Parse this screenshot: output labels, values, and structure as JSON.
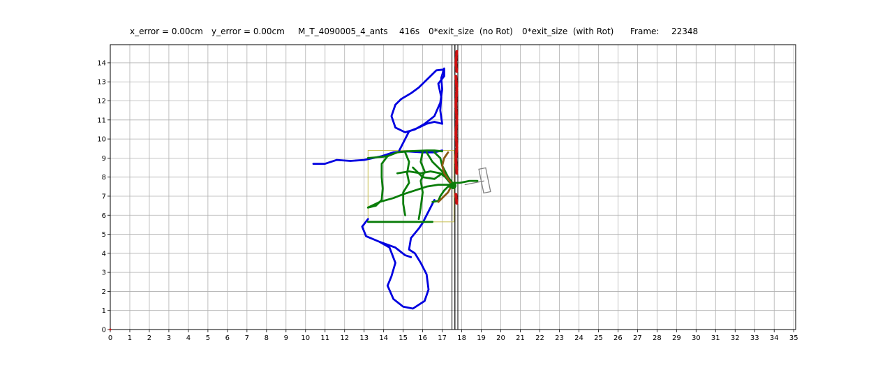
{
  "header": {
    "x_error": "x_error = 0.00cm",
    "y_error": "y_error = 0.00cm",
    "experiment": "M_T_4090005_4_ants",
    "duration": "416s",
    "exit_no_rot": "0*exit_size  (no Rot)",
    "exit_with_rot": "0*exit_size  (with Rot)",
    "frame_label": "Frame:",
    "frame_value": "22348"
  },
  "chart_data": {
    "type": "line",
    "xlim": [
      0,
      35.1
    ],
    "ylim": [
      0,
      14.95
    ],
    "xticks": [
      0,
      1,
      2,
      3,
      4,
      5,
      6,
      7,
      8,
      9,
      10,
      11,
      12,
      13,
      14,
      15,
      16,
      17,
      18,
      19,
      20,
      21,
      22,
      23,
      24,
      25,
      26,
      27,
      28,
      29,
      30,
      31,
      32,
      33,
      34,
      35
    ],
    "yticks": [
      0,
      1,
      2,
      3,
      4,
      5,
      6,
      7,
      8,
      9,
      10,
      11,
      12,
      13,
      14
    ],
    "grid": true,
    "colors": {
      "blue": "#0000e0",
      "green": "#0a7d0a",
      "red": "#cc1111",
      "brown": "#8a5a14",
      "yellow": "#c8c050",
      "gray": "#808080"
    },
    "series": [
      {
        "color": "blue",
        "points": [
          [
            10.4,
            8.7
          ],
          [
            11,
            8.7
          ],
          [
            11.6,
            8.9
          ],
          [
            12.3,
            8.85
          ],
          [
            13,
            8.9
          ],
          [
            13.9,
            9.1
          ],
          [
            14.5,
            9.3
          ],
          [
            15.2,
            9.35
          ],
          [
            16,
            9.3
          ],
          [
            16.6,
            9.3
          ],
          [
            17,
            9.4
          ]
        ]
      },
      {
        "color": "blue",
        "points": [
          [
            14.8,
            9.4
          ],
          [
            15.1,
            10
          ],
          [
            15.3,
            10.4
          ],
          [
            15.8,
            10.6
          ],
          [
            16.2,
            10.8
          ],
          [
            16.6,
            10.9
          ],
          [
            17,
            10.8
          ],
          [
            16.9,
            11.5
          ],
          [
            16.95,
            12.2
          ],
          [
            16.8,
            12.9
          ],
          [
            17.1,
            13.3
          ],
          [
            17.1,
            13.65
          ],
          [
            16.7,
            13.6
          ],
          [
            16.3,
            13.2
          ],
          [
            15.8,
            12.7
          ],
          [
            15.4,
            12.4
          ],
          [
            14.9,
            12.1
          ],
          [
            14.6,
            11.8
          ],
          [
            14.4,
            11.2
          ],
          [
            14.6,
            10.6
          ],
          [
            15.1,
            10.35
          ],
          [
            15.6,
            10.5
          ],
          [
            16.1,
            10.8
          ],
          [
            16.6,
            11.2
          ],
          [
            16.9,
            11.9
          ],
          [
            17,
            12.6
          ],
          [
            16.95,
            13.2
          ],
          [
            17.1,
            13.7
          ]
        ]
      },
      {
        "color": "blue",
        "points": [
          [
            13.2,
            5.8
          ],
          [
            12.9,
            5.4
          ],
          [
            13.1,
            4.9
          ],
          [
            13.8,
            4.6
          ],
          [
            14.3,
            4.3
          ],
          [
            14.6,
            3.5
          ],
          [
            14.4,
            2.8
          ],
          [
            14.2,
            2.3
          ],
          [
            14.5,
            1.6
          ],
          [
            15,
            1.2
          ],
          [
            15.5,
            1.1
          ],
          [
            16.1,
            1.5
          ],
          [
            16.3,
            2.1
          ],
          [
            16.2,
            2.9
          ],
          [
            15.9,
            3.5
          ],
          [
            15.6,
            4.0
          ],
          [
            15.3,
            4.2
          ],
          [
            15.4,
            4.8
          ],
          [
            15.8,
            5.3
          ],
          [
            16,
            5.6
          ],
          [
            16.3,
            6.2
          ],
          [
            16.6,
            6.8
          ]
        ]
      },
      {
        "color": "blue",
        "points": [
          [
            13.8,
            4.6
          ],
          [
            14.6,
            4.3
          ],
          [
            15.1,
            3.9
          ],
          [
            15.4,
            3.8
          ]
        ]
      },
      {
        "color": "green",
        "points": [
          [
            13.2,
            9.0
          ],
          [
            13.8,
            9.05
          ],
          [
            14.2,
            9.1
          ],
          [
            14.7,
            9.3
          ],
          [
            15.2,
            9.35
          ],
          [
            16.2,
            9.4
          ],
          [
            16.6,
            9.4
          ],
          [
            17,
            9.35
          ]
        ]
      },
      {
        "color": "green",
        "points": [
          [
            14.2,
            9.1
          ],
          [
            13.9,
            8.7
          ],
          [
            13.9,
            8.0
          ],
          [
            13.95,
            7.4
          ],
          [
            13.9,
            6.8
          ],
          [
            13.6,
            6.5
          ],
          [
            13.2,
            6.4
          ]
        ]
      },
      {
        "color": "green",
        "points": [
          [
            15.1,
            9.3
          ],
          [
            15.3,
            8.8
          ],
          [
            15.2,
            8.2
          ],
          [
            15.3,
            7.7
          ],
          [
            15,
            7.2
          ],
          [
            15,
            6.6
          ],
          [
            15.1,
            6.0
          ]
        ]
      },
      {
        "color": "green",
        "points": [
          [
            13.2,
            6.4
          ],
          [
            13.8,
            6.7
          ],
          [
            14.5,
            6.9
          ],
          [
            15.0,
            7.1
          ],
          [
            15.6,
            7.3
          ],
          [
            16.2,
            7.5
          ],
          [
            16.8,
            7.6
          ],
          [
            17.4,
            7.6
          ]
        ]
      },
      {
        "color": "green",
        "points": [
          [
            16,
            9.35
          ],
          [
            15.9,
            8.8
          ],
          [
            16.1,
            8.3
          ],
          [
            15.9,
            7.8
          ],
          [
            16,
            7.2
          ],
          [
            15.9,
            6.4
          ],
          [
            15.8,
            5.8
          ]
        ]
      },
      {
        "color": "green",
        "points": [
          [
            14.7,
            8.2
          ],
          [
            15.3,
            8.3
          ],
          [
            15.9,
            8.2
          ],
          [
            16.4,
            8.3
          ],
          [
            16.9,
            8.2
          ],
          [
            17.3,
            7.9
          ],
          [
            17.5,
            7.6
          ]
        ]
      },
      {
        "color": "green",
        "points": [
          [
            15.5,
            8.5
          ],
          [
            16.0,
            8.0
          ],
          [
            16.6,
            7.9
          ],
          [
            17.0,
            8.2
          ],
          [
            17.4,
            7.7
          ],
          [
            17.9,
            7.7
          ],
          [
            18.4,
            7.8
          ],
          [
            18.8,
            7.8
          ]
        ]
      },
      {
        "color": "green",
        "points": [
          [
            16.6,
            9.3
          ],
          [
            16.9,
            9.0
          ],
          [
            17.0,
            8.6
          ],
          [
            17.2,
            8.2
          ],
          [
            17.4,
            7.8
          ],
          [
            17.5,
            7.5
          ]
        ]
      },
      {
        "color": "green",
        "points": [
          [
            16.2,
            9.3
          ],
          [
            16.5,
            8.8
          ],
          [
            16.9,
            8.4
          ],
          [
            17.3,
            8.0
          ],
          [
            17.6,
            7.6
          ]
        ]
      },
      {
        "color": "green",
        "points": [
          [
            13.2,
            5.65
          ],
          [
            14,
            5.65
          ],
          [
            15,
            5.65
          ],
          [
            16.0,
            5.65
          ],
          [
            16.5,
            5.65
          ]
        ]
      },
      {
        "color": "green",
        "points": [
          [
            16.5,
            6.7
          ],
          [
            16.8,
            6.75
          ],
          [
            16.9,
            7.0
          ],
          [
            17.1,
            7.3
          ],
          [
            17.3,
            7.5
          ],
          [
            17.6,
            7.5
          ]
        ]
      },
      {
        "color": "brown",
        "points": [
          [
            17.3,
            9.3
          ],
          [
            17.1,
            9.0
          ],
          [
            17.0,
            8.6
          ],
          [
            17.1,
            8.2
          ],
          [
            17.3,
            7.9
          ],
          [
            17.5,
            7.6
          ],
          [
            17.3,
            7.2
          ],
          [
            17.0,
            6.9
          ],
          [
            16.8,
            6.7
          ]
        ]
      },
      {
        "color": "red",
        "points": [
          [
            17.75,
            14.6
          ],
          [
            17.7,
            14.0
          ],
          [
            17.75,
            13.5
          ]
        ]
      },
      {
        "color": "red",
        "points": [
          [
            17.7,
            13.3
          ],
          [
            17.75,
            12.6
          ],
          [
            17.7,
            11.8
          ],
          [
            17.75,
            11.0
          ],
          [
            17.7,
            10.3
          ],
          [
            17.75,
            9.6
          ],
          [
            17.7,
            8.9
          ],
          [
            17.75,
            8.2
          ]
        ]
      },
      {
        "color": "red",
        "points": [
          [
            17.7,
            7.1
          ],
          [
            17.75,
            6.6
          ]
        ]
      }
    ],
    "rectangles": [
      {
        "color": "yellow",
        "x0": 13.2,
        "x1": 17.6,
        "y0": 5.65,
        "y1": 9.4
      }
    ],
    "walls": [
      {
        "x0": 17.5,
        "x1": 17.65
      },
      {
        "x0": 17.65,
        "x1": 17.8
      }
    ],
    "load": {
      "color": "gray",
      "bar": [
        [
          19.05,
          8.45
        ],
        [
          19.3,
          7.2
        ]
      ],
      "stem": [
        [
          18.15,
          7.6
        ],
        [
          19.15,
          7.8
        ]
      ]
    }
  }
}
